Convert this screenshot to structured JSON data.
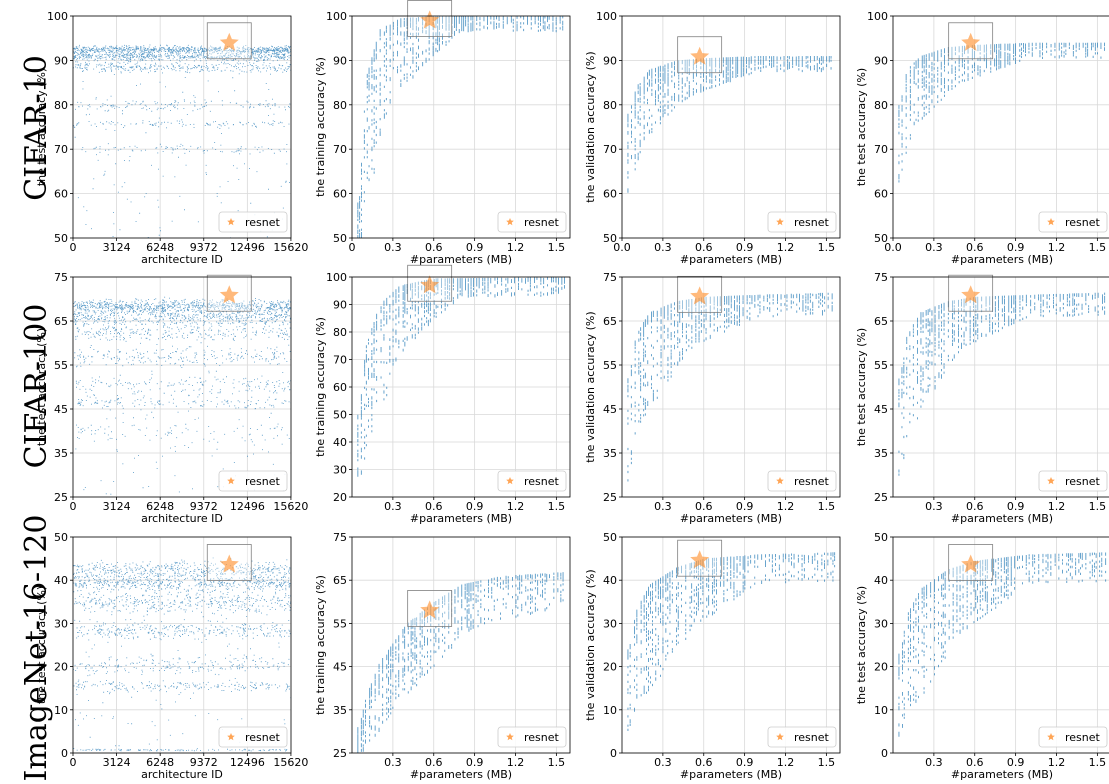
{
  "figure": {
    "row_labels": [
      "CIFAR-10",
      "CIFAR-100",
      "ImageNet-16-120"
    ],
    "colors": {
      "points": "#1f77b4",
      "resnet": "#ff7f0e",
      "grid": "#d9d9d9",
      "zoom_box": "#808080"
    }
  },
  "chart_data": [
    {
      "id": "c10-test-id",
      "type": "scatter",
      "xlabel": "architecture ID",
      "ylabel": "the test accuracy (%)",
      "xlim": [
        0,
        15625
      ],
      "ylim": [
        50,
        100
      ],
      "xticks": [
        0,
        3124,
        6248,
        9372,
        12496,
        15620
      ],
      "xtick_labels": [
        "0",
        "3124",
        "6248",
        "9372",
        "12496",
        "15620"
      ],
      "yticks": [
        50,
        60,
        70,
        80,
        90,
        100
      ],
      "ytick_labels": [
        "50",
        "60",
        "70",
        "80",
        "90",
        "100"
      ],
      "bands": [
        [
          92.5,
          0.8,
          0.3
        ],
        [
          91.0,
          1.0,
          0.22
        ],
        [
          88.5,
          1.2,
          0.12
        ],
        [
          80.0,
          1.2,
          0.05
        ],
        [
          75.8,
          0.8,
          0.04
        ],
        [
          70.0,
          1.0,
          0.03
        ]
      ],
      "min_y": 50,
      "resnet": {
        "x": 11200,
        "y": 93.97
      },
      "legend": "resnet",
      "legend_loc": "lower right"
    },
    {
      "id": "c10-train-param",
      "type": "scatter",
      "xlabel": "#parameters (MB)",
      "ylabel": "the training accuracy (%)",
      "xlim": [
        0,
        1.6
      ],
      "ylim": [
        50,
        100
      ],
      "xticks": [
        0,
        0.3,
        0.6,
        0.9,
        1.2,
        1.5
      ],
      "xtick_labels": [
        "0",
        "0.3",
        "0.6",
        "0.9",
        "1.2",
        "1.5"
      ],
      "yticks": [
        50,
        60,
        70,
        80,
        90,
        100
      ],
      "ytick_labels": [
        "50",
        "60",
        "70",
        "80",
        "90",
        "100"
      ],
      "curve": [
        [
          0.05,
          58
        ],
        [
          0.1,
          86
        ],
        [
          0.2,
          97
        ],
        [
          0.35,
          99.5
        ],
        [
          0.6,
          100
        ],
        [
          1.6,
          100
        ]
      ],
      "spread": [
        [
          0.05,
          10
        ],
        [
          0.15,
          18
        ],
        [
          0.35,
          10
        ],
        [
          0.8,
          2
        ]
      ],
      "min_y": 50,
      "resnet": {
        "x": 0.57,
        "y": 99.0
      },
      "legend": "resnet",
      "legend_loc": "lower right"
    },
    {
      "id": "c10-valid-param",
      "type": "scatter",
      "xlabel": "#parameters (MB)",
      "ylabel": "the validation accuracy (%)",
      "xlim": [
        0,
        1.6
      ],
      "ylim": [
        50,
        100
      ],
      "xticks": [
        0,
        0.3,
        0.6,
        0.9,
        1.2,
        1.5
      ],
      "xtick_labels": [
        "0.0",
        "0.3",
        "0.6",
        "0.9",
        "1.2",
        "1.5"
      ],
      "yticks": [
        50,
        60,
        70,
        80,
        90,
        100
      ],
      "ytick_labels": [
        "50",
        "60",
        "70",
        "80",
        "90",
        "100"
      ],
      "curve": [
        [
          0.05,
          78
        ],
        [
          0.1,
          84
        ],
        [
          0.2,
          88
        ],
        [
          0.4,
          90
        ],
        [
          0.6,
          90.5
        ],
        [
          1.0,
          91
        ],
        [
          1.6,
          91
        ]
      ],
      "spread": [
        [
          0.05,
          12
        ],
        [
          0.2,
          9
        ],
        [
          0.5,
          5
        ],
        [
          1.0,
          2
        ]
      ],
      "min_y": 50,
      "resnet": {
        "x": 0.57,
        "y": 90.83
      },
      "legend": "resnet",
      "legend_loc": "lower right"
    },
    {
      "id": "c10-test-param",
      "type": "scatter",
      "xlabel": "#parameters (MB)",
      "ylabel": "the test accuracy (%)",
      "xlim": [
        0,
        1.6
      ],
      "ylim": [
        50,
        100
      ],
      "xticks": [
        0,
        0.3,
        0.6,
        0.9,
        1.2,
        1.5
      ],
      "xtick_labels": [
        "0.0",
        "0.3",
        "0.6",
        "0.9",
        "1.2",
        "1.5"
      ],
      "yticks": [
        50,
        60,
        70,
        80,
        90,
        100
      ],
      "ytick_labels": [
        "50",
        "60",
        "70",
        "80",
        "90",
        "100"
      ],
      "curve": [
        [
          0.05,
          80
        ],
        [
          0.1,
          88
        ],
        [
          0.2,
          91
        ],
        [
          0.4,
          93
        ],
        [
          0.6,
          93.5
        ],
        [
          1.0,
          94
        ],
        [
          1.6,
          94
        ]
      ],
      "spread": [
        [
          0.05,
          12
        ],
        [
          0.2,
          9
        ],
        [
          0.5,
          5
        ],
        [
          1.0,
          2
        ]
      ],
      "min_y": 50,
      "resnet": {
        "x": 0.57,
        "y": 93.97
      },
      "legend": "resnet",
      "legend_loc": "lower right"
    },
    {
      "id": "c100-test-id",
      "type": "scatter",
      "xlabel": "architecture ID",
      "ylabel": "the test accuracy (%)",
      "xlim": [
        0,
        15625
      ],
      "ylim": [
        25,
        75
      ],
      "xticks": [
        0,
        3124,
        6248,
        9372,
        12496,
        15620
      ],
      "xtick_labels": [
        "0",
        "3124",
        "6248",
        "9372",
        "12496",
        "15620"
      ],
      "yticks": [
        25,
        35,
        45,
        55,
        65,
        75
      ],
      "ytick_labels": [
        "25",
        "35",
        "45",
        "55",
        "65",
        "75"
      ],
      "bands": [
        [
          68.5,
          1.5,
          0.3
        ],
        [
          66.0,
          1.8,
          0.2
        ],
        [
          62.5,
          2.0,
          0.1
        ],
        [
          57.0,
          2.0,
          0.08
        ],
        [
          50.5,
          2.0,
          0.06
        ],
        [
          46.5,
          1.2,
          0.05
        ],
        [
          40.0,
          2.5,
          0.03
        ]
      ],
      "min_y": 25,
      "resnet": {
        "x": 11200,
        "y": 70.86
      },
      "legend": "resnet",
      "legend_loc": "lower right"
    },
    {
      "id": "c100-train-param",
      "type": "scatter",
      "xlabel": "#parameters (MB)",
      "ylabel": "the training accuracy (%)",
      "xlim": [
        0,
        1.6
      ],
      "ylim": [
        20,
        100
      ],
      "xticks": [
        0.3,
        0.6,
        0.9,
        1.2,
        1.5
      ],
      "xtick_labels": [
        "0.3",
        "0.6",
        "0.9",
        "1.2",
        "1.5"
      ],
      "yticks": [
        20,
        30,
        40,
        50,
        60,
        70,
        80,
        90,
        100
      ],
      "ytick_labels": [
        "20",
        "30",
        "40",
        "50",
        "60",
        "70",
        "80",
        "90",
        "100"
      ],
      "curve": [
        [
          0.05,
          50
        ],
        [
          0.1,
          75
        ],
        [
          0.2,
          90
        ],
        [
          0.35,
          97
        ],
        [
          0.6,
          99.5
        ],
        [
          1.6,
          100
        ]
      ],
      "spread": [
        [
          0.05,
          22
        ],
        [
          0.2,
          25
        ],
        [
          0.4,
          14
        ],
        [
          0.8,
          4
        ]
      ],
      "min_y": 28,
      "resnet": {
        "x": 0.57,
        "y": 97.0
      },
      "legend": "resnet",
      "legend_loc": "lower right"
    },
    {
      "id": "c100-valid-param",
      "type": "scatter",
      "xlabel": "#parameters (MB)",
      "ylabel": "the validation accuracy (%)",
      "xlim": [
        0,
        1.6
      ],
      "ylim": [
        25,
        75
      ],
      "xticks": [
        0.3,
        0.6,
        0.9,
        1.2,
        1.5
      ],
      "xtick_labels": [
        "0.3",
        "0.6",
        "0.9",
        "1.2",
        "1.5"
      ],
      "yticks": [
        25,
        35,
        45,
        55,
        65,
        75
      ],
      "ytick_labels": [
        "25",
        "35",
        "45",
        "55",
        "65",
        "75"
      ],
      "curve": [
        [
          0.05,
          52
        ],
        [
          0.1,
          62
        ],
        [
          0.2,
          67
        ],
        [
          0.4,
          69.5
        ],
        [
          0.6,
          70.5
        ],
        [
          1.0,
          71
        ],
        [
          1.6,
          71.5
        ]
      ],
      "spread": [
        [
          0.05,
          15
        ],
        [
          0.2,
          14
        ],
        [
          0.5,
          7
        ],
        [
          1.0,
          3
        ]
      ],
      "min_y": 27,
      "resnet": {
        "x": 0.57,
        "y": 70.6
      },
      "legend": "resnet",
      "legend_loc": "lower right"
    },
    {
      "id": "c100-test-param",
      "type": "scatter",
      "xlabel": "#parameters (MB)",
      "ylabel": "the test accuracy (%)",
      "xlim": [
        0,
        1.6
      ],
      "ylim": [
        25,
        75
      ],
      "xticks": [
        0.3,
        0.6,
        0.9,
        1.2,
        1.5
      ],
      "xtick_labels": [
        "0.3",
        "0.6",
        "0.9",
        "1.2",
        "1.5"
      ],
      "yticks": [
        25,
        35,
        45,
        55,
        65,
        75
      ],
      "ytick_labels": [
        "25",
        "35",
        "45",
        "55",
        "65",
        "75"
      ],
      "curve": [
        [
          0.05,
          52
        ],
        [
          0.1,
          62
        ],
        [
          0.2,
          67
        ],
        [
          0.4,
          69.5
        ],
        [
          0.6,
          70.5
        ],
        [
          1.0,
          71
        ],
        [
          1.6,
          71.5
        ]
      ],
      "spread": [
        [
          0.05,
          15
        ],
        [
          0.2,
          14
        ],
        [
          0.5,
          7
        ],
        [
          1.0,
          3
        ]
      ],
      "min_y": 27,
      "resnet": {
        "x": 0.57,
        "y": 70.86
      },
      "legend": "resnet",
      "legend_loc": "lower right"
    },
    {
      "id": "in16-test-id",
      "type": "scatter",
      "xlabel": "architecture ID",
      "ylabel": "the test accuracy (%)",
      "xlim": [
        0,
        15625
      ],
      "ylim": [
        0,
        50
      ],
      "xticks": [
        0,
        3124,
        6248,
        9372,
        12496,
        15620
      ],
      "xtick_labels": [
        "0",
        "3124",
        "6248",
        "9372",
        "12496",
        "15620"
      ],
      "yticks": [
        0,
        10,
        20,
        30,
        40,
        50
      ],
      "ytick_labels": [
        "0",
        "10",
        "20",
        "30",
        "40",
        "50"
      ],
      "bands": [
        [
          42.5,
          2.0,
          0.18
        ],
        [
          39.5,
          2.0,
          0.2
        ],
        [
          35.0,
          2.5,
          0.15
        ],
        [
          28.5,
          2.0,
          0.12
        ],
        [
          20.5,
          2.0,
          0.08
        ],
        [
          15.5,
          1.2,
          0.07
        ],
        [
          0.8,
          0.2,
          0.04
        ]
      ],
      "min_y": 0,
      "resnet": {
        "x": 11200,
        "y": 43.63
      },
      "legend": "resnet",
      "legend_loc": "lower right"
    },
    {
      "id": "in16-train-param",
      "type": "scatter",
      "xlabel": "#parameters (MB)",
      "ylabel": "the training accuracy (%)",
      "xlim": [
        0,
        1.6
      ],
      "ylim": [
        25,
        75
      ],
      "xticks": [
        0.3,
        0.6,
        0.9,
        1.2,
        1.5
      ],
      "xtick_labels": [
        "0.3",
        "0.6",
        "0.9",
        "1.2",
        "1.5"
      ],
      "yticks": [
        25,
        35,
        45,
        55,
        65,
        75
      ],
      "ytick_labels": [
        "25",
        "35",
        "45",
        "55",
        "65",
        "75"
      ],
      "curve": [
        [
          0.05,
          31
        ],
        [
          0.1,
          38
        ],
        [
          0.2,
          46
        ],
        [
          0.4,
          55
        ],
        [
          0.6,
          60
        ],
        [
          0.8,
          64
        ],
        [
          1.1,
          66
        ],
        [
          1.6,
          67
        ]
      ],
      "spread": [
        [
          0.05,
          6
        ],
        [
          0.2,
          10
        ],
        [
          0.5,
          10
        ],
        [
          1.0,
          6
        ]
      ],
      "min_y": 25,
      "resnet": {
        "x": 0.57,
        "y": 58.0
      },
      "legend": "resnet",
      "legend_loc": "lower right"
    },
    {
      "id": "in16-valid-param",
      "type": "scatter",
      "xlabel": "#parameters (MB)",
      "ylabel": "the validation accuracy (%)",
      "xlim": [
        0,
        1.6
      ],
      "ylim": [
        0,
        50
      ],
      "xticks": [
        0.3,
        0.6,
        0.9,
        1.2,
        1.5
      ],
      "xtick_labels": [
        "0.3",
        "0.6",
        "0.9",
        "1.2",
        "1.5"
      ],
      "yticks": [
        0,
        10,
        20,
        30,
        40,
        50
      ],
      "ytick_labels": [
        "0",
        "10",
        "20",
        "30",
        "40",
        "50"
      ],
      "curve": [
        [
          0.05,
          24
        ],
        [
          0.1,
          33
        ],
        [
          0.2,
          39
        ],
        [
          0.4,
          43
        ],
        [
          0.6,
          45
        ],
        [
          1.0,
          46
        ],
        [
          1.6,
          46.5
        ]
      ],
      "spread": [
        [
          0.05,
          12
        ],
        [
          0.2,
          16
        ],
        [
          0.5,
          10
        ],
        [
          1.0,
          4
        ]
      ],
      "min_y": 1,
      "resnet": {
        "x": 0.57,
        "y": 44.63
      },
      "legend": "resnet",
      "legend_loc": "lower right"
    },
    {
      "id": "in16-test-param",
      "type": "scatter",
      "xlabel": "#parameters (MB)",
      "ylabel": "the test accuracy (%)",
      "xlim": [
        0,
        1.6
      ],
      "ylim": [
        0,
        50
      ],
      "xticks": [
        0.3,
        0.6,
        0.9,
        1.2,
        1.5
      ],
      "xtick_labels": [
        "0.3",
        "0.6",
        "0.9",
        "1.2",
        "1.5"
      ],
      "yticks": [
        0,
        10,
        20,
        30,
        40,
        50
      ],
      "ytick_labels": [
        "0",
        "10",
        "20",
        "30",
        "40",
        "50"
      ],
      "curve": [
        [
          0.05,
          23
        ],
        [
          0.1,
          32
        ],
        [
          0.2,
          38
        ],
        [
          0.4,
          42.5
        ],
        [
          0.6,
          44.5
        ],
        [
          1.0,
          46
        ],
        [
          1.6,
          46.5
        ]
      ],
      "spread": [
        [
          0.05,
          12
        ],
        [
          0.2,
          16
        ],
        [
          0.5,
          10
        ],
        [
          1.0,
          4
        ]
      ],
      "min_y": 1,
      "resnet": {
        "x": 0.57,
        "y": 43.63
      },
      "legend": "resnet",
      "legend_loc": "lower right"
    }
  ]
}
